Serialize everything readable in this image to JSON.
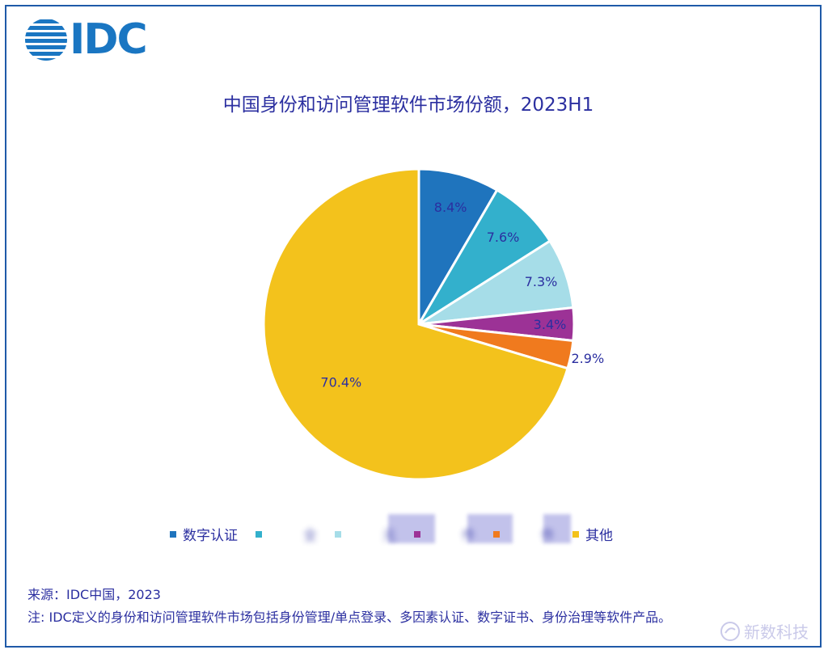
{
  "logo": {
    "text": "IDC"
  },
  "chart_data": {
    "type": "pie",
    "title": "中国身份和访问管理软件市场份额，2023H1",
    "slices": [
      {
        "label": "数字认证",
        "value": 8.4,
        "value_label": "8.4%",
        "color": "#1f74bd"
      },
      {
        "label": "",
        "value": 7.6,
        "value_label": "7.6%",
        "color": "#33b0cc"
      },
      {
        "label": "",
        "value": 7.3,
        "value_label": "7.3%",
        "color": "#a6dde8"
      },
      {
        "label": "",
        "value": 3.4,
        "value_label": "3.4%",
        "color": "#9c3296"
      },
      {
        "label": "",
        "value": 2.9,
        "value_label": "2.9%",
        "color": "#f07a1e"
      },
      {
        "label": "其他",
        "value": 70.4,
        "value_label": "70.4%",
        "color": "#f3c21c"
      }
    ],
    "legend": {
      "placement": "bottom",
      "items": [
        {
          "text": "数字认证",
          "obscured": false
        },
        {
          "text": "全",
          "obscured": true
        },
        {
          "text": "元",
          "obscured": true
        },
        {
          "text": "件",
          "obscured": true
        },
        {
          "text": "件",
          "obscured": true
        },
        {
          "text": "其他",
          "obscured": false
        }
      ]
    }
  },
  "notes": {
    "source": "来源：IDC中国，2023",
    "note": "注: IDC定义的身份和访问管理软件市场包括身份管理/单点登录、多因素认证、数字证书、身份治理等软件产品。"
  },
  "watermark": {
    "text": "新数科技"
  }
}
